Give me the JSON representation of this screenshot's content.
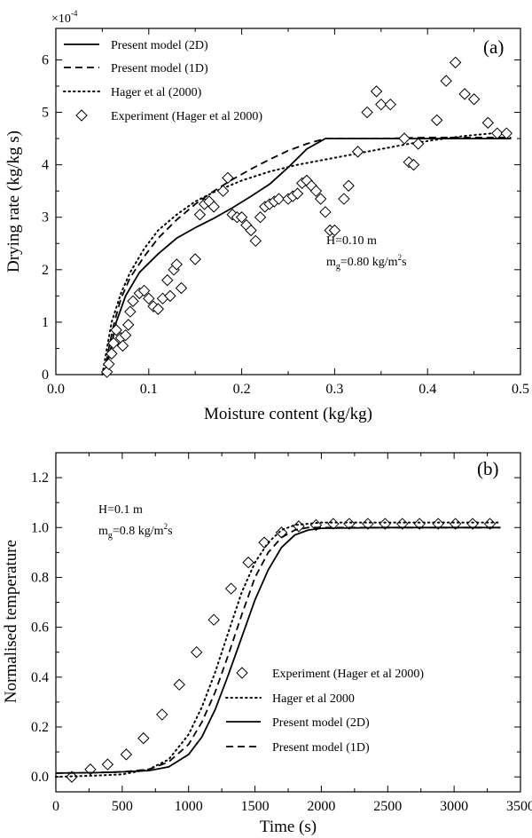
{
  "chart_data": [
    {
      "type": "line",
      "panel_label": "(a)",
      "xlabel": "Moisture content (kg/kg)",
      "ylabel": "Drying rate (kg/kg s)",
      "y_multiplier": "×10",
      "y_multiplier_exp": "-4",
      "xlim": [
        0.0,
        0.5
      ],
      "ylim": [
        0,
        6.6
      ],
      "xticks": [
        0.0,
        0.1,
        0.2,
        0.3,
        0.4,
        0.5
      ],
      "xtick_labels": [
        "0.0",
        "0.1",
        "0.2",
        "0.3",
        "0.4",
        "0.5"
      ],
      "yticks": [
        0,
        1,
        2,
        3,
        4,
        5,
        6
      ],
      "ytick_labels": [
        "0",
        "1",
        "2",
        "3",
        "4",
        "5",
        "6"
      ],
      "legend_position": "top-left",
      "annotation": {
        "line1": "H=0.10 m",
        "line2_pre": "m",
        "line2_sub": "g",
        "line2_mid": "=0.80 kg/m",
        "line2_sup": "2",
        "line2_post": "s"
      },
      "series": [
        {
          "name": "Present model (2D)",
          "style": "solid",
          "points": [
            [
              0.052,
              0
            ],
            [
              0.058,
              0.4
            ],
            [
              0.065,
              1.0
            ],
            [
              0.075,
              1.5
            ],
            [
              0.09,
              1.95
            ],
            [
              0.11,
              2.3
            ],
            [
              0.13,
              2.6
            ],
            [
              0.15,
              2.8
            ],
            [
              0.17,
              2.98
            ],
            [
              0.19,
              3.18
            ],
            [
              0.21,
              3.4
            ],
            [
              0.23,
              3.63
            ],
            [
              0.25,
              3.95
            ],
            [
              0.27,
              4.3
            ],
            [
              0.29,
              4.5
            ],
            [
              0.31,
              4.5
            ],
            [
              0.35,
              4.5
            ],
            [
              0.4,
              4.5
            ],
            [
              0.45,
              4.5
            ],
            [
              0.49,
              4.5
            ]
          ]
        },
        {
          "name": "Present model (1D)",
          "style": "dashed",
          "points": [
            [
              0.052,
              0
            ],
            [
              0.057,
              0.5
            ],
            [
              0.063,
              1.0
            ],
            [
              0.07,
              1.45
            ],
            [
              0.08,
              1.85
            ],
            [
              0.095,
              2.25
            ],
            [
              0.11,
              2.6
            ],
            [
              0.13,
              2.95
            ],
            [
              0.15,
              3.25
            ],
            [
              0.17,
              3.5
            ],
            [
              0.19,
              3.72
            ],
            [
              0.21,
              3.92
            ],
            [
              0.23,
              4.1
            ],
            [
              0.25,
              4.27
            ],
            [
              0.27,
              4.4
            ],
            [
              0.29,
              4.5
            ],
            [
              0.35,
              4.5
            ],
            [
              0.4,
              4.52
            ],
            [
              0.45,
              4.52
            ],
            [
              0.49,
              4.52
            ]
          ]
        },
        {
          "name": "Hager et al (2000)",
          "style": "dotted",
          "points": [
            [
              0.05,
              0
            ],
            [
              0.055,
              0.5
            ],
            [
              0.06,
              1.0
            ],
            [
              0.07,
              1.55
            ],
            [
              0.08,
              1.95
            ],
            [
              0.095,
              2.4
            ],
            [
              0.11,
              2.75
            ],
            [
              0.13,
              3.05
            ],
            [
              0.15,
              3.3
            ],
            [
              0.17,
              3.48
            ],
            [
              0.2,
              3.7
            ],
            [
              0.23,
              3.87
            ],
            [
              0.26,
              4.0
            ],
            [
              0.29,
              4.1
            ],
            [
              0.32,
              4.2
            ],
            [
              0.35,
              4.3
            ],
            [
              0.38,
              4.4
            ],
            [
              0.41,
              4.48
            ],
            [
              0.44,
              4.55
            ],
            [
              0.47,
              4.6
            ],
            [
              0.49,
              4.62
            ]
          ]
        },
        {
          "name": "Experiment (Hager et al 2000)",
          "style": "diamond",
          "points": [
            [
              0.055,
              0.05
            ],
            [
              0.057,
              0.2
            ],
            [
              0.06,
              0.4
            ],
            [
              0.062,
              0.6
            ],
            [
              0.065,
              0.85
            ],
            [
              0.07,
              0.7
            ],
            [
              0.072,
              0.55
            ],
            [
              0.075,
              0.75
            ],
            [
              0.078,
              0.95
            ],
            [
              0.08,
              1.2
            ],
            [
              0.083,
              1.4
            ],
            [
              0.09,
              1.55
            ],
            [
              0.095,
              1.6
            ],
            [
              0.1,
              1.45
            ],
            [
              0.105,
              1.3
            ],
            [
              0.11,
              1.25
            ],
            [
              0.115,
              1.45
            ],
            [
              0.12,
              1.8
            ],
            [
              0.123,
              1.5
            ],
            [
              0.127,
              2.0
            ],
            [
              0.13,
              2.1
            ],
            [
              0.135,
              1.65
            ],
            [
              0.15,
              2.2
            ],
            [
              0.155,
              3.05
            ],
            [
              0.16,
              3.25
            ],
            [
              0.165,
              3.3
            ],
            [
              0.17,
              3.2
            ],
            [
              0.18,
              3.5
            ],
            [
              0.185,
              3.75
            ],
            [
              0.19,
              3.05
            ],
            [
              0.195,
              3.0
            ],
            [
              0.2,
              3.0
            ],
            [
              0.205,
              2.85
            ],
            [
              0.21,
              2.75
            ],
            [
              0.215,
              2.55
            ],
            [
              0.22,
              3.0
            ],
            [
              0.225,
              3.2
            ],
            [
              0.23,
              3.25
            ],
            [
              0.235,
              3.3
            ],
            [
              0.24,
              3.35
            ],
            [
              0.25,
              3.35
            ],
            [
              0.255,
              3.4
            ],
            [
              0.26,
              3.45
            ],
            [
              0.265,
              3.65
            ],
            [
              0.27,
              3.7
            ],
            [
              0.275,
              3.6
            ],
            [
              0.28,
              3.5
            ],
            [
              0.285,
              3.35
            ],
            [
              0.29,
              3.1
            ],
            [
              0.295,
              2.75
            ],
            [
              0.3,
              2.75
            ],
            [
              0.31,
              3.35
            ],
            [
              0.315,
              3.6
            ],
            [
              0.325,
              4.25
            ],
            [
              0.335,
              5.0
            ],
            [
              0.345,
              5.4
            ],
            [
              0.35,
              5.15
            ],
            [
              0.36,
              5.15
            ],
            [
              0.375,
              4.5
            ],
            [
              0.38,
              4.05
            ],
            [
              0.385,
              4.0
            ],
            [
              0.39,
              4.4
            ],
            [
              0.41,
              4.85
            ],
            [
              0.42,
              5.6
            ],
            [
              0.43,
              5.95
            ],
            [
              0.44,
              5.35
            ],
            [
              0.45,
              5.25
            ],
            [
              0.465,
              4.8
            ],
            [
              0.475,
              4.6
            ],
            [
              0.485,
              4.6
            ]
          ]
        }
      ]
    },
    {
      "type": "line",
      "panel_label": "(b)",
      "xlabel": "Time (s)",
      "ylabel": "Normalised temperature",
      "xlim": [
        0,
        3500
      ],
      "ylim": [
        -0.06,
        1.3
      ],
      "xticks": [
        0,
        500,
        1000,
        1500,
        2000,
        2500,
        3000,
        3500
      ],
      "xtick_labels": [
        "0",
        "500",
        "1000",
        "1500",
        "2000",
        "2500",
        "3000",
        "3500"
      ],
      "yticks": [
        0.0,
        0.2,
        0.4,
        0.6,
        0.8,
        1.0,
        1.2
      ],
      "ytick_labels": [
        "0.0",
        "0.2",
        "0.4",
        "0.6",
        "0.8",
        "1.0",
        "1.2"
      ],
      "legend_position": "bottom-right",
      "annotation": {
        "line1": "H=0.1 m",
        "line2_pre": "m",
        "line2_sub": "g",
        "line2_mid": "=0.8 kg/m",
        "line2_sup": "2",
        "line2_post": "s"
      },
      "series": [
        {
          "name": "Experiment (Hager et al 2000)",
          "style": "diamond",
          "points": [
            [
              120,
              0.0
            ],
            [
              260,
              0.03
            ],
            [
              390,
              0.05
            ],
            [
              530,
              0.09
            ],
            [
              660,
              0.155
            ],
            [
              800,
              0.25
            ],
            [
              930,
              0.37
            ],
            [
              1060,
              0.5
            ],
            [
              1190,
              0.63
            ],
            [
              1320,
              0.755
            ],
            [
              1450,
              0.86
            ],
            [
              1570,
              0.94
            ],
            [
              1700,
              0.98
            ],
            [
              1830,
              1.005
            ],
            [
              1960,
              1.01
            ],
            [
              2090,
              1.015
            ],
            [
              2210,
              1.015
            ],
            [
              2350,
              1.015
            ],
            [
              2480,
              1.015
            ],
            [
              2610,
              1.015
            ],
            [
              2740,
              1.015
            ],
            [
              2880,
              1.015
            ],
            [
              3010,
              1.015
            ],
            [
              3140,
              1.015
            ],
            [
              3270,
              1.015
            ]
          ]
        },
        {
          "name": "Hager et al 2000",
          "style": "dotted",
          "points": [
            [
              0,
              0.0
            ],
            [
              300,
              0.005
            ],
            [
              500,
              0.01
            ],
            [
              700,
              0.03
            ],
            [
              850,
              0.07
            ],
            [
              1000,
              0.17
            ],
            [
              1100,
              0.28
            ],
            [
              1200,
              0.42
            ],
            [
              1300,
              0.58
            ],
            [
              1400,
              0.74
            ],
            [
              1500,
              0.86
            ],
            [
              1600,
              0.94
            ],
            [
              1700,
              0.99
            ],
            [
              1800,
              1.01
            ],
            [
              2000,
              1.02
            ],
            [
              2500,
              1.02
            ],
            [
              3000,
              1.02
            ],
            [
              3350,
              1.02
            ]
          ]
        },
        {
          "name": "Present model (2D)",
          "style": "solid",
          "points": [
            [
              0,
              0.015
            ],
            [
              300,
              0.017
            ],
            [
              500,
              0.02
            ],
            [
              700,
              0.025
            ],
            [
              850,
              0.04
            ],
            [
              1000,
              0.09
            ],
            [
              1100,
              0.16
            ],
            [
              1200,
              0.27
            ],
            [
              1300,
              0.41
            ],
            [
              1400,
              0.56
            ],
            [
              1500,
              0.71
            ],
            [
              1600,
              0.83
            ],
            [
              1700,
              0.92
            ],
            [
              1800,
              0.97
            ],
            [
              1900,
              0.99
            ],
            [
              2000,
              0.997
            ],
            [
              2500,
              1.0
            ],
            [
              3000,
              1.0
            ],
            [
              3350,
              1.0
            ]
          ]
        },
        {
          "name": "Present model (1D)",
          "style": "dashed",
          "points": [
            [
              0,
              0.015
            ],
            [
              300,
              0.017
            ],
            [
              500,
              0.02
            ],
            [
              700,
              0.03
            ],
            [
              850,
              0.06
            ],
            [
              1000,
              0.13
            ],
            [
              1100,
              0.22
            ],
            [
              1200,
              0.34
            ],
            [
              1300,
              0.49
            ],
            [
              1400,
              0.65
            ],
            [
              1500,
              0.8
            ],
            [
              1600,
              0.9
            ],
            [
              1700,
              0.96
            ],
            [
              1800,
              0.99
            ],
            [
              1900,
              1.0
            ],
            [
              2000,
              1.0
            ],
            [
              2500,
              1.0
            ],
            [
              3000,
              1.0
            ],
            [
              3350,
              1.0
            ]
          ]
        }
      ]
    }
  ]
}
